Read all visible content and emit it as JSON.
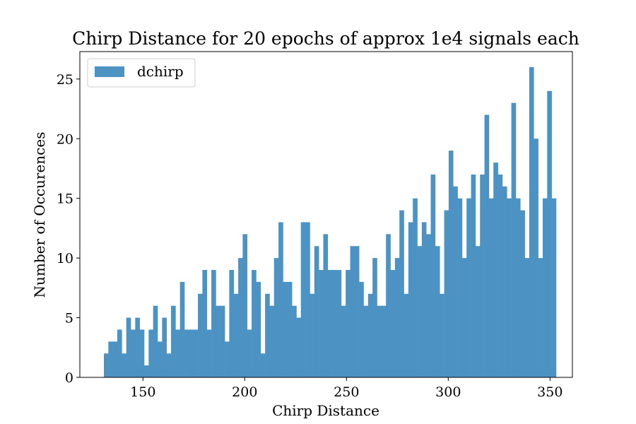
{
  "chart_data": {
    "type": "bar",
    "title": "Chirp Distance for 20 epochs of approx 1e4 signals each",
    "xlabel": "Chirp Distance",
    "ylabel": "Number of Occurences",
    "xlim": [
      119,
      361
    ],
    "ylim": [
      0,
      27.3
    ],
    "xticks": [
      150,
      200,
      250,
      300,
      350
    ],
    "yticks": [
      0,
      5,
      10,
      15,
      20,
      25
    ],
    "bin_start": 130.8,
    "bin_width": 2.2,
    "bar_color": "#4c92c3",
    "legend": {
      "placement": "top-left",
      "entries": [
        {
          "name": "dchirp",
          "color": "#4c92c3"
        }
      ]
    },
    "series": [
      {
        "name": "dchirp",
        "values": [
          2,
          3,
          3,
          4,
          2,
          5,
          4,
          5,
          4,
          1,
          4,
          6,
          3,
          5,
          2,
          6,
          4,
          8,
          4,
          4,
          4,
          7,
          9,
          4,
          9,
          6,
          6,
          3,
          9,
          7,
          10,
          12,
          4,
          9,
          8,
          2,
          7,
          6,
          10,
          13,
          8,
          8,
          6,
          5,
          13,
          13,
          7,
          11,
          9,
          12,
          9,
          9,
          9,
          6,
          9,
          11,
          11,
          8,
          6,
          7,
          10,
          6,
          6,
          12,
          9,
          10,
          14,
          7,
          13,
          15,
          11,
          13,
          12,
          17,
          11,
          7,
          14,
          19,
          16,
          15,
          10,
          15,
          17,
          11,
          17,
          22,
          15,
          18,
          17,
          16,
          15,
          23,
          15,
          14,
          10,
          26,
          20,
          10,
          15,
          24,
          15
        ]
      }
    ]
  }
}
